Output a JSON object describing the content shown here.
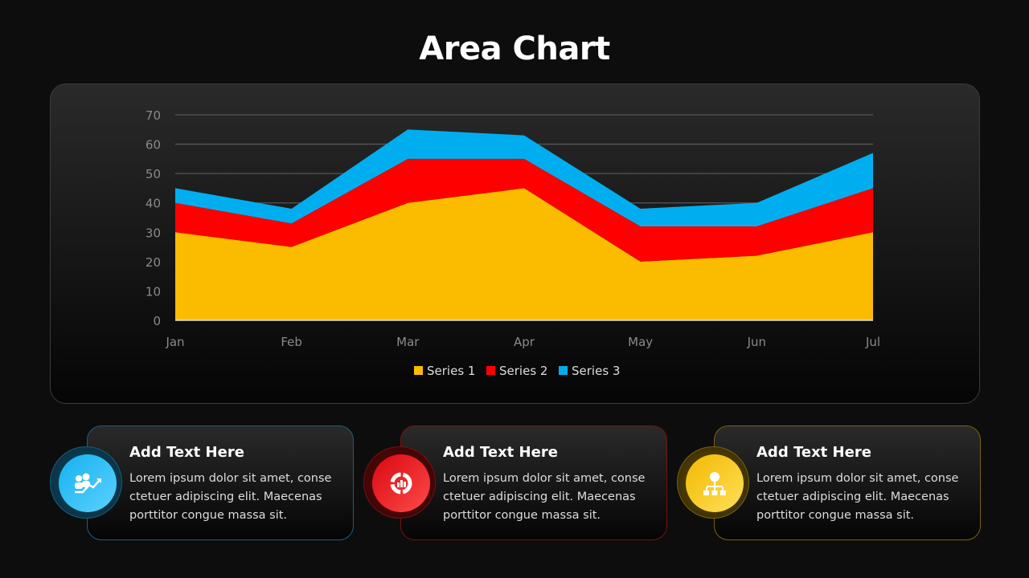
{
  "title": "Area Chart",
  "chart_data": {
    "type": "area",
    "stacked": true,
    "categories": [
      "Jan",
      "Feb",
      "Mar",
      "Apr",
      "May",
      "Jun",
      "Jul"
    ],
    "series": [
      {
        "name": "Series 1",
        "values": [
          30,
          25,
          40,
          45,
          20,
          22,
          30
        ],
        "color": "#FBBC00"
      },
      {
        "name": "Series 2",
        "values": [
          10,
          8,
          15,
          10,
          12,
          10,
          15
        ],
        "color": "#FF0000"
      },
      {
        "name": "Series 3",
        "values": [
          5,
          5,
          10,
          8,
          6,
          8,
          12
        ],
        "color": "#00AEEF"
      }
    ],
    "ylim": [
      0,
      70
    ],
    "yticks": [
      0,
      10,
      20,
      30,
      40,
      50,
      60,
      70
    ],
    "grid": true,
    "legend": "bottom"
  },
  "cards": [
    {
      "heading": "Add Text Here",
      "body": "Lorem ipsum dolor sit amet, conse ctetuer adipiscing elit. Maecenas porttitor congue massa sit.",
      "icon": "team-growth-icon",
      "color": "#1EB5F0"
    },
    {
      "heading": "Add Text Here",
      "body": "Lorem ipsum dolor sit amet, conse ctetuer adipiscing elit. Maecenas porttitor congue massa sit.",
      "icon": "donut-chart-icon",
      "color": "#E8101A"
    },
    {
      "heading": "Add Text Here",
      "body": "Lorem ipsum dolor sit amet, conse ctetuer adipiscing elit. Maecenas porttitor congue massa sit.",
      "icon": "hierarchy-bulb-icon",
      "color": "#F5C518"
    }
  ]
}
